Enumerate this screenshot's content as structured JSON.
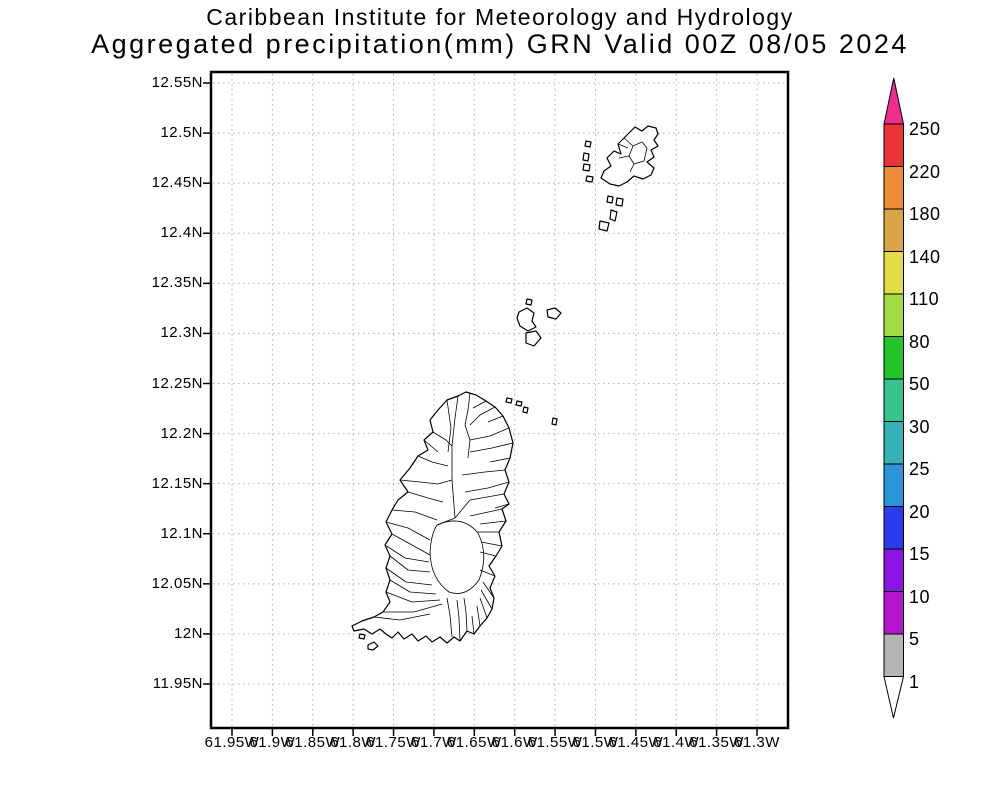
{
  "title": {
    "line1": "Caribbean Institute for Meteorology and Hydrology",
    "line2": "Aggregated precipitation(mm) GRN Valid 00Z 08/05 2024"
  },
  "map": {
    "y_tick_labels": [
      "12.55N",
      "12.5N",
      "12.45N",
      "12.4N",
      "12.35N",
      "12.3N",
      "12.25N",
      "12.2N",
      "12.15N",
      "12.1N",
      "12.05N",
      "12N",
      "11.95N"
    ],
    "x_tick_labels": [
      "61.95W",
      "61.9W",
      "61.85W",
      "61.8W",
      "61.75W",
      "61.7W",
      "61.65W",
      "61.6W",
      "61.55W",
      "61.5W",
      "61.45W",
      "61.4W",
      "61.35W",
      "61.3W"
    ],
    "grid_color": "#b0b0b0",
    "border_color": "#000000",
    "coastline_color": "#000000",
    "land_fill": "#ffffff"
  },
  "colorbar": {
    "labels": [
      "250",
      "220",
      "180",
      "140",
      "110",
      "80",
      "50",
      "30",
      "25",
      "20",
      "15",
      "10",
      "5",
      "1"
    ],
    "segment_colors_top_to_bottom": [
      "#ec3434",
      "#ec8c34",
      "#d8a444",
      "#e4dc44",
      "#a4dc44",
      "#24c42c",
      "#34c48c",
      "#34b4b4",
      "#2c94dc",
      "#2c3cec",
      "#8c14e4",
      "#b414cc",
      "#b4b4b4"
    ],
    "arrow_top_color": "#ed2e8f",
    "arrow_bottom_color": "#ffffff",
    "outline_color": "#000000",
    "units": "mm"
  }
}
